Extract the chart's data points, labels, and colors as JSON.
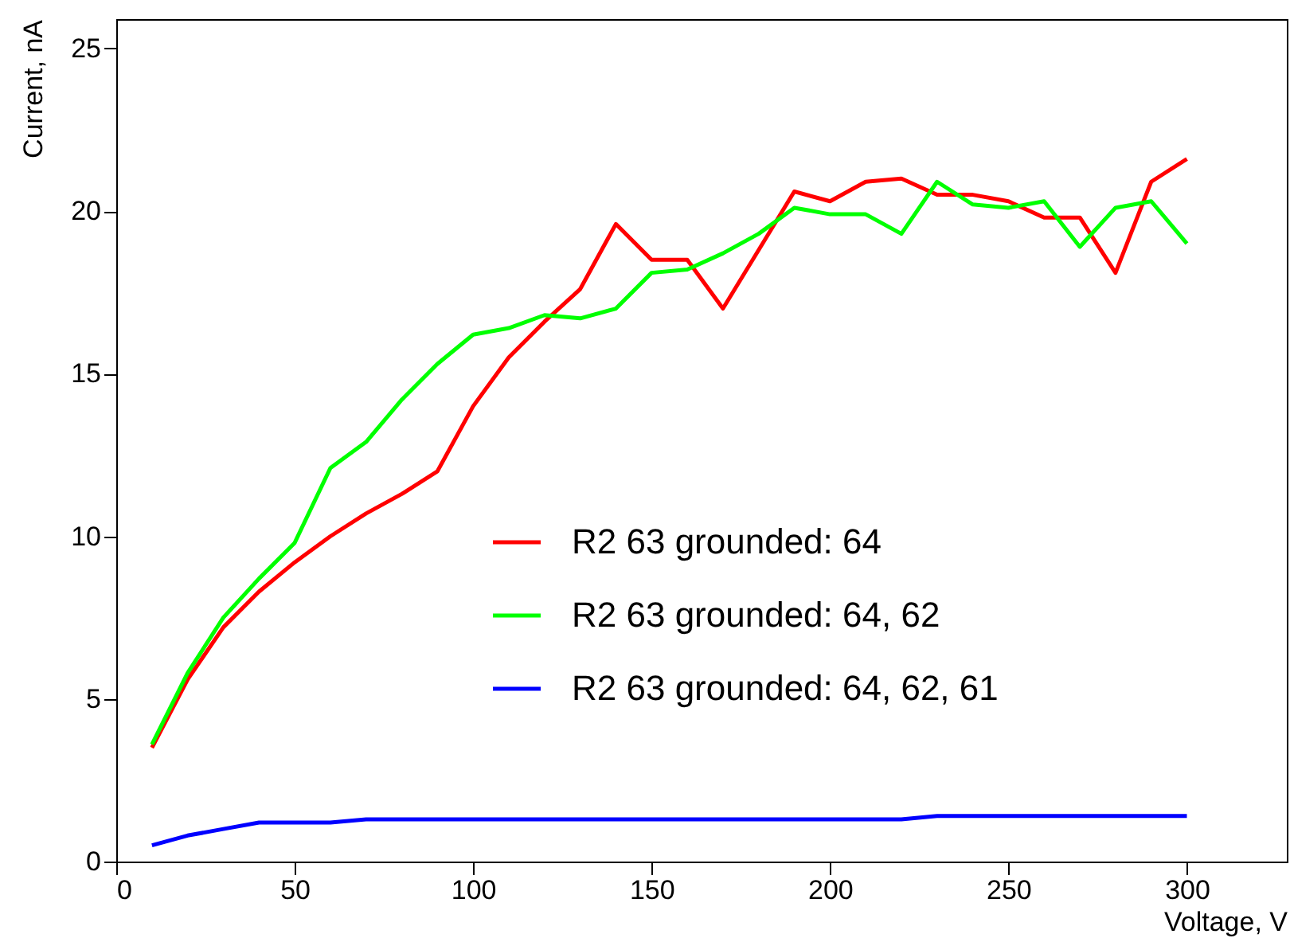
{
  "chart_data": {
    "type": "line",
    "xlabel": "Voltage, V",
    "ylabel": "Current, nA",
    "x": [
      10,
      20,
      30,
      40,
      50,
      60,
      70,
      80,
      90,
      100,
      110,
      120,
      130,
      140,
      150,
      160,
      170,
      180,
      190,
      200,
      210,
      220,
      230,
      240,
      250,
      260,
      270,
      280,
      290,
      300
    ],
    "series": [
      {
        "name": "R2 63 grounded: 64",
        "color": "#ff0000",
        "values": [
          3.5,
          5.6,
          7.2,
          8.3,
          9.2,
          10.0,
          10.7,
          11.3,
          12.0,
          14.0,
          15.5,
          16.6,
          17.6,
          19.6,
          18.5,
          18.5,
          17.0,
          18.8,
          20.6,
          20.3,
          20.9,
          21.0,
          20.5,
          20.5,
          20.3,
          19.8,
          19.8,
          18.1,
          20.9,
          21.6
        ]
      },
      {
        "name": "R2 63 grounded: 64, 62",
        "color": "#00ff00",
        "values": [
          3.6,
          5.8,
          7.5,
          8.7,
          9.8,
          12.1,
          12.9,
          14.2,
          15.3,
          16.2,
          16.4,
          16.8,
          16.7,
          17.0,
          18.1,
          18.2,
          18.7,
          19.3,
          20.1,
          19.9,
          19.9,
          19.3,
          20.9,
          20.2,
          20.1,
          20.3,
          18.9,
          20.1,
          20.3,
          19.0
        ]
      },
      {
        "name": "R2 63 grounded: 64, 62, 61",
        "color": "#0000ff",
        "values": [
          0.5,
          0.8,
          1.0,
          1.2,
          1.2,
          1.2,
          1.3,
          1.3,
          1.3,
          1.3,
          1.3,
          1.3,
          1.3,
          1.3,
          1.3,
          1.3,
          1.3,
          1.3,
          1.3,
          1.3,
          1.3,
          1.3,
          1.4,
          1.4,
          1.4,
          1.4,
          1.4,
          1.4,
          1.4,
          1.4
        ]
      }
    ],
    "xlim": [
      0,
      328
    ],
    "xticks": [
      0,
      50,
      100,
      150,
      200,
      250,
      300
    ],
    "ylim": [
      0,
      25.9
    ],
    "yticks": [
      0,
      5,
      10,
      15,
      20,
      25
    ],
    "legend": "right",
    "marker": "none",
    "line_style": "solid"
  }
}
